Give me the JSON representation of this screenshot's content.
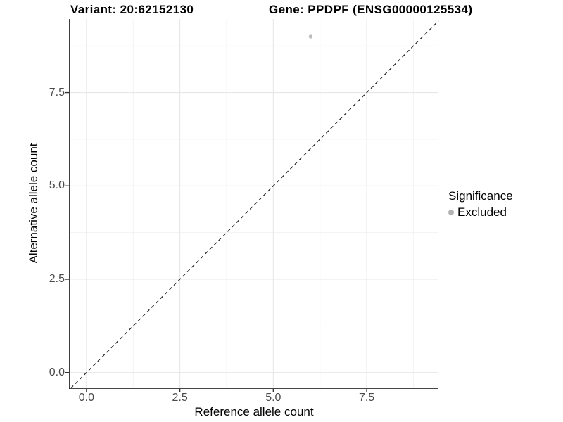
{
  "figure": {
    "title_left": "Variant: 20:62152130",
    "title_right": "Gene: PPDPF (ENSG00000125534)"
  },
  "chart_data": {
    "type": "scatter",
    "title": "Variant: 20:62152130   Gene: PPDPF (ENSG00000125534)",
    "xlabel": "Reference allele count",
    "ylabel": "Alternative allele count",
    "xlim": [
      -0.45,
      9.42
    ],
    "ylim": [
      -0.42,
      9.47
    ],
    "x_ticks": [
      {
        "value": 0,
        "label": "0.0"
      },
      {
        "value": 2.5,
        "label": "2.5"
      },
      {
        "value": 5,
        "label": "5.0"
      },
      {
        "value": 7.5,
        "label": "7.5"
      }
    ],
    "y_ticks": [
      {
        "value": 0,
        "label": "0.0"
      },
      {
        "value": 2.5,
        "label": "2.5"
      },
      {
        "value": 5,
        "label": "5.0"
      },
      {
        "value": 7.5,
        "label": "7.5"
      }
    ],
    "x_minor_ticks": [
      1.25,
      3.75,
      6.25,
      8.75
    ],
    "y_minor_ticks": [
      1.25,
      3.75,
      6.25,
      8.75
    ],
    "grid": "major+minor",
    "series": [
      {
        "name": "Excluded",
        "color": "#bdbdbd",
        "points": [
          {
            "x": 6,
            "y": 9
          }
        ]
      }
    ],
    "reference_line": {
      "kind": "identity",
      "style": "dashed",
      "color": "#1a1a1a"
    },
    "legend": {
      "title": "Significance",
      "position": "right",
      "items": [
        {
          "label": "Excluded",
          "color": "#b3b3b3",
          "marker": "circle"
        }
      ]
    },
    "colors": {
      "background": "#ffffff",
      "grid_major": "#e7e7e7",
      "grid_minor": "#f3f3f3",
      "axis_line": "#2b2b2b",
      "tick_mark": "#333333",
      "tick_label": "#4a4a4a"
    }
  }
}
